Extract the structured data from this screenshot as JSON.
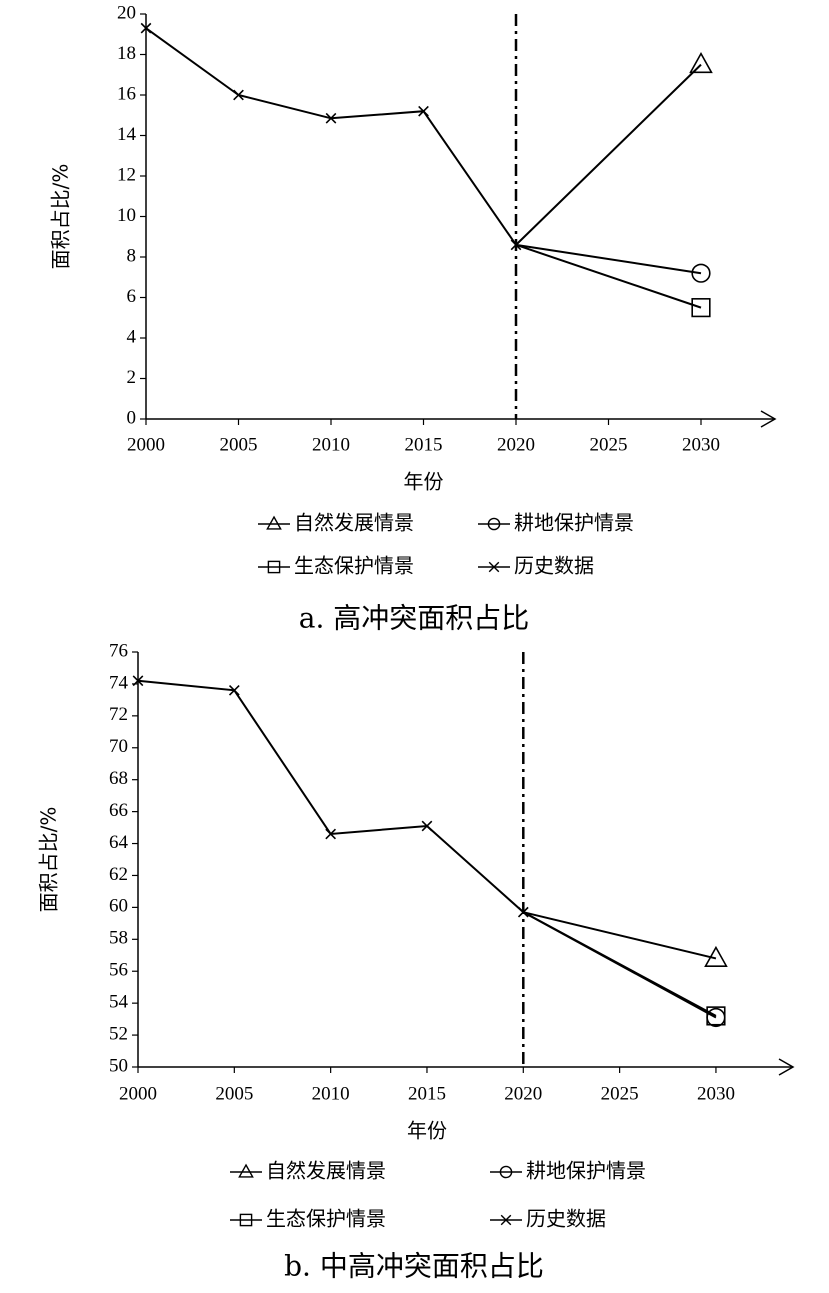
{
  "chart_data": [
    {
      "type": "line",
      "caption": "a. 高冲突面积占比",
      "ylabel": "面积占比/%",
      "xlabel": "年份",
      "xlim": [
        2000,
        2034
      ],
      "xticks": [
        2000,
        2005,
        2010,
        2015,
        2020,
        2025,
        2030
      ],
      "ylim": [
        0,
        20
      ],
      "yticks": [
        0,
        2,
        4,
        6,
        8,
        10,
        12,
        14,
        16,
        18,
        20
      ],
      "vline": 2020,
      "grid": false,
      "series": [
        {
          "name": "自然发展情景",
          "marker": "triangle",
          "color": "#000000",
          "x": [
            2020,
            2030
          ],
          "values": [
            8.6,
            17.5
          ]
        },
        {
          "name": "耕地保护情景",
          "marker": "circle",
          "color": "#000000",
          "x": [
            2020,
            2030
          ],
          "values": [
            8.6,
            7.2
          ]
        },
        {
          "name": "生态保护情景",
          "marker": "square",
          "color": "#000000",
          "x": [
            2020,
            2030
          ],
          "values": [
            8.6,
            5.5
          ]
        },
        {
          "name": "历史数据",
          "marker": "cross",
          "color": "#000000",
          "x": [
            2000,
            2005,
            2010,
            2015,
            2020
          ],
          "values": [
            19.3,
            16.0,
            14.85,
            15.2,
            8.6
          ]
        }
      ]
    },
    {
      "type": "line",
      "caption": "b. 中高冲突面积占比",
      "ylabel": "面积占比/%",
      "xlabel": "年份",
      "xlim": [
        2000,
        2034
      ],
      "xticks": [
        2000,
        2005,
        2010,
        2015,
        2020,
        2025,
        2030
      ],
      "ylim": [
        50,
        76
      ],
      "yticks": [
        50,
        52,
        54,
        56,
        58,
        60,
        62,
        64,
        66,
        68,
        70,
        72,
        74,
        76
      ],
      "vline": 2020,
      "grid": false,
      "series": [
        {
          "name": "自然发展情景",
          "marker": "triangle",
          "color": "#000000",
          "x": [
            2020,
            2030
          ],
          "values": [
            59.7,
            56.8
          ]
        },
        {
          "name": "耕地保护情景",
          "marker": "circle",
          "color": "#000000",
          "x": [
            2020,
            2030
          ],
          "values": [
            59.7,
            53.1
          ]
        },
        {
          "name": "生态保护情景",
          "marker": "square",
          "color": "#000000",
          "x": [
            2020,
            2030
          ],
          "values": [
            59.7,
            53.2
          ]
        },
        {
          "name": "历史数据",
          "marker": "cross",
          "color": "#000000",
          "x": [
            2000,
            2005,
            2010,
            2015,
            2020
          ],
          "values": [
            74.2,
            73.6,
            64.6,
            65.1,
            59.7
          ]
        }
      ]
    }
  ]
}
